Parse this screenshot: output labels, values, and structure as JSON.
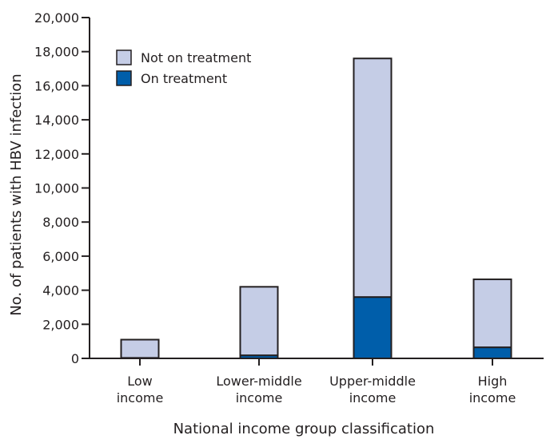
{
  "chart_data": {
    "type": "bar",
    "stacked": true,
    "categories": [
      [
        "Low",
        "income"
      ],
      [
        "Lower-middle",
        "income"
      ],
      [
        "Upper-middle",
        "income"
      ],
      [
        "High",
        "income"
      ]
    ],
    "series": [
      {
        "name": "On treatment",
        "values": [
          30,
          180,
          3600,
          650
        ],
        "color": "#005eaa"
      },
      {
        "name": "Not on treatment",
        "values": [
          1070,
          4020,
          14000,
          3990
        ],
        "color": "#c5cde6"
      }
    ],
    "xlabel": "National income group classification",
    "ylabel": "No. of patients with HBV infection",
    "ylim": [
      0,
      20000
    ],
    "yticks": [
      0,
      2000,
      4000,
      6000,
      8000,
      10000,
      12000,
      14000,
      16000,
      18000,
      20000
    ],
    "ytick_labels": [
      "0",
      "2,000",
      "4,000",
      "6,000",
      "8,000",
      "10,000",
      "12,000",
      "14,000",
      "16,000",
      "18,000",
      "20,000"
    ],
    "legend": {
      "placement": "top-left",
      "entries": [
        "Not on treatment",
        "On treatment"
      ]
    },
    "grid": false
  }
}
